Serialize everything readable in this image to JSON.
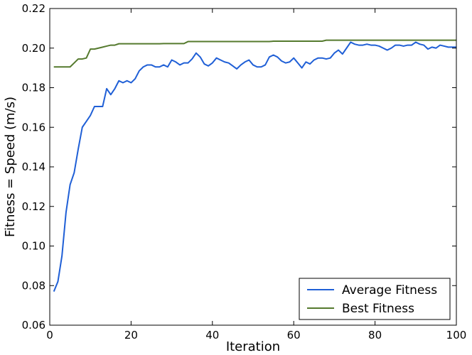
{
  "chart_data": {
    "type": "line",
    "title": "",
    "xlabel": "Iteration",
    "ylabel": "Fitness = Speed (m/s)",
    "xlim": [
      0,
      100
    ],
    "ylim": [
      0.06,
      0.22
    ],
    "xticks": [
      0,
      20,
      40,
      60,
      80,
      100
    ],
    "xtick_labels": [
      "0",
      "20",
      "40",
      "60",
      "80",
      "100"
    ],
    "yticks": [
      0.06,
      0.08,
      0.1,
      0.12,
      0.14,
      0.16,
      0.18,
      0.2,
      0.22
    ],
    "ytick_labels": [
      "0.06",
      "0.08",
      "0.10",
      "0.12",
      "0.14",
      "0.16",
      "0.18",
      "0.20",
      "0.22"
    ],
    "grid": false,
    "legend_position": "lower-right",
    "series": [
      {
        "name": "Average Fitness",
        "color": "#1f5fd6",
        "x": [
          1,
          2,
          3,
          4,
          5,
          6,
          7,
          8,
          9,
          10,
          11,
          12,
          13,
          14,
          15,
          16,
          17,
          18,
          19,
          20,
          21,
          22,
          23,
          24,
          25,
          26,
          27,
          28,
          29,
          30,
          31,
          32,
          33,
          34,
          35,
          36,
          37,
          38,
          39,
          40,
          41,
          42,
          43,
          44,
          45,
          46,
          47,
          48,
          49,
          50,
          51,
          52,
          53,
          54,
          55,
          56,
          57,
          58,
          59,
          60,
          61,
          62,
          63,
          64,
          65,
          66,
          67,
          68,
          69,
          70,
          71,
          72,
          73,
          74,
          75,
          76,
          77,
          78,
          79,
          80,
          81,
          82,
          83,
          84,
          85,
          86,
          87,
          88,
          89,
          90,
          91,
          92,
          93,
          94,
          95,
          96,
          97,
          98,
          99,
          100
        ],
        "y": [
          0.077,
          0.082,
          0.095,
          0.117,
          0.131,
          0.137,
          0.149,
          0.16,
          0.163,
          0.166,
          0.1705,
          0.1705,
          0.1705,
          0.1795,
          0.1765,
          0.1795,
          0.1835,
          0.1825,
          0.1835,
          0.1825,
          0.1845,
          0.1885,
          0.1905,
          0.1915,
          0.1915,
          0.1905,
          0.1905,
          0.1915,
          0.1905,
          0.194,
          0.193,
          0.1915,
          0.1925,
          0.1925,
          0.1945,
          0.1975,
          0.1955,
          0.192,
          0.191,
          0.1925,
          0.195,
          0.194,
          0.193,
          0.1925,
          0.191,
          0.1895,
          0.1915,
          0.193,
          0.194,
          0.1915,
          0.1905,
          0.1905,
          0.1915,
          0.1955,
          0.1965,
          0.1955,
          0.1935,
          0.1925,
          0.193,
          0.195,
          0.1925,
          0.19,
          0.193,
          0.192,
          0.194,
          0.195,
          0.195,
          0.1945,
          0.195,
          0.1975,
          0.199,
          0.197,
          0.2,
          0.203,
          0.202,
          0.2015,
          0.2015,
          0.202,
          0.2015,
          0.2015,
          0.201,
          0.2,
          0.199,
          0.2,
          0.2015,
          0.2015,
          0.201,
          0.2015,
          0.2015,
          0.203,
          0.202,
          0.2015,
          0.1995,
          0.2005,
          0.2,
          0.2015,
          0.201,
          0.2005,
          0.2005,
          0.2005
        ]
      },
      {
        "name": "Best Fitness",
        "color": "#557a2e",
        "x": [
          1,
          2,
          3,
          4,
          5,
          6,
          7,
          8,
          9,
          10,
          11,
          12,
          13,
          14,
          15,
          16,
          17,
          18,
          19,
          20,
          21,
          22,
          23,
          24,
          25,
          26,
          27,
          28,
          29,
          30,
          31,
          32,
          33,
          34,
          35,
          36,
          37,
          38,
          39,
          40,
          41,
          42,
          43,
          44,
          45,
          46,
          47,
          48,
          49,
          50,
          51,
          52,
          53,
          54,
          55,
          56,
          57,
          58,
          59,
          60,
          61,
          62,
          63,
          64,
          65,
          66,
          67,
          68,
          69,
          70,
          71,
          72,
          73,
          74,
          75,
          76,
          77,
          78,
          79,
          80,
          81,
          82,
          83,
          84,
          85,
          86,
          87,
          88,
          89,
          90,
          91,
          92,
          93,
          94,
          95,
          96,
          97,
          98,
          99,
          100
        ],
        "y": [
          0.1905,
          0.1905,
          0.1905,
          0.1905,
          0.1905,
          0.1925,
          0.1945,
          0.1945,
          0.195,
          0.1995,
          0.1995,
          0.2,
          0.2005,
          0.201,
          0.2015,
          0.2015,
          0.2022,
          0.2022,
          0.2022,
          0.2022,
          0.2022,
          0.2022,
          0.2022,
          0.2022,
          0.2022,
          0.2022,
          0.2022,
          0.2023,
          0.2023,
          0.2023,
          0.2023,
          0.2023,
          0.2023,
          0.2033,
          0.2033,
          0.2033,
          0.2033,
          0.2033,
          0.2033,
          0.2033,
          0.2033,
          0.2033,
          0.2033,
          0.2033,
          0.2033,
          0.2033,
          0.2033,
          0.2033,
          0.2033,
          0.2033,
          0.2033,
          0.2033,
          0.2033,
          0.2033,
          0.2035,
          0.2035,
          0.2035,
          0.2035,
          0.2035,
          0.2035,
          0.2035,
          0.2035,
          0.2035,
          0.2035,
          0.2035,
          0.2035,
          0.2035,
          0.204,
          0.204,
          0.204,
          0.204,
          0.204,
          0.204,
          0.204,
          0.204,
          0.204,
          0.204,
          0.204,
          0.204,
          0.204,
          0.204,
          0.204,
          0.204,
          0.204,
          0.204,
          0.204,
          0.204,
          0.204,
          0.204,
          0.204,
          0.204,
          0.204,
          0.204,
          0.204,
          0.204,
          0.204,
          0.204,
          0.204,
          0.204,
          0.204
        ]
      }
    ]
  }
}
